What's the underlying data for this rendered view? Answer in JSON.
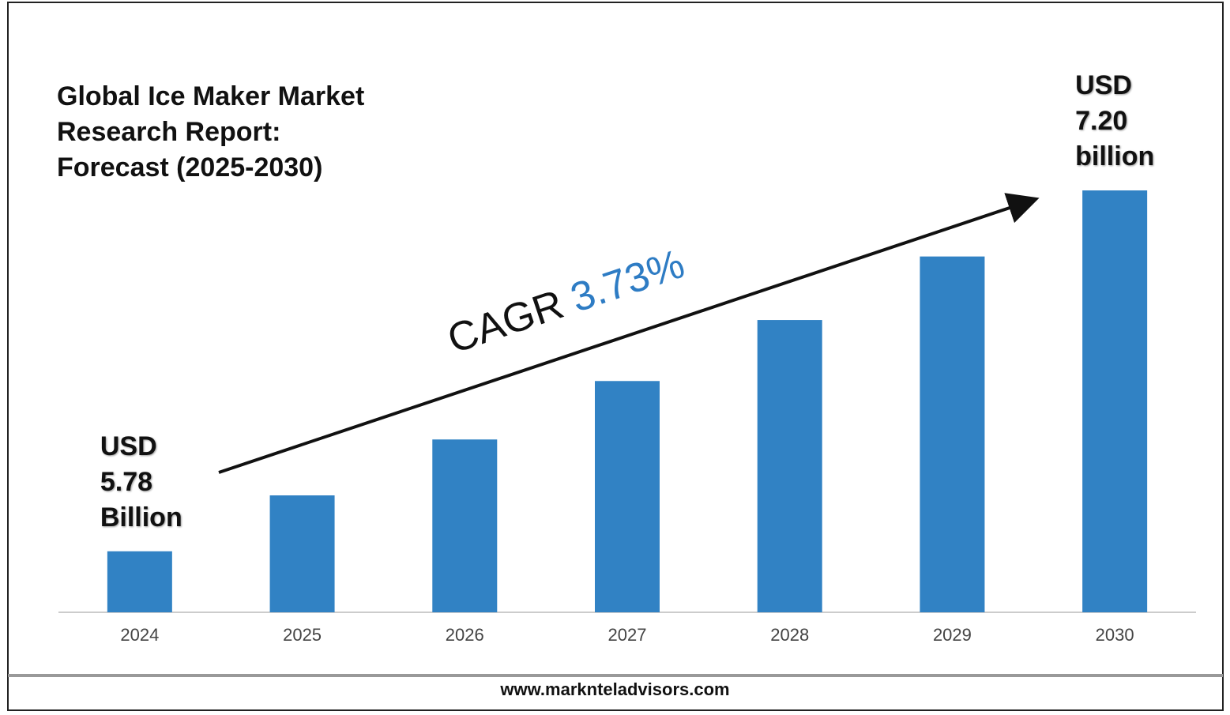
{
  "chart_data": {
    "type": "bar",
    "title": "Global Ice Maker Market\nResearch Report:\nForecast (2025-2030)",
    "categories": [
      "2024",
      "2025",
      "2026",
      "2027",
      "2028",
      "2029",
      "2030"
    ],
    "values": [
      5.78,
      6.0,
      6.22,
      6.45,
      6.69,
      6.94,
      7.2
    ],
    "value_labels": [
      "USD\n5.78\nBillion",
      null,
      null,
      null,
      null,
      null,
      "USD\n7.20\nbillion"
    ],
    "color": "#3182c4",
    "ylim": [
      5.54,
      7.2
    ],
    "annotation": {
      "label": "CAGR",
      "value": "3.73%"
    },
    "footer": "www.marknteladvisors.com"
  }
}
